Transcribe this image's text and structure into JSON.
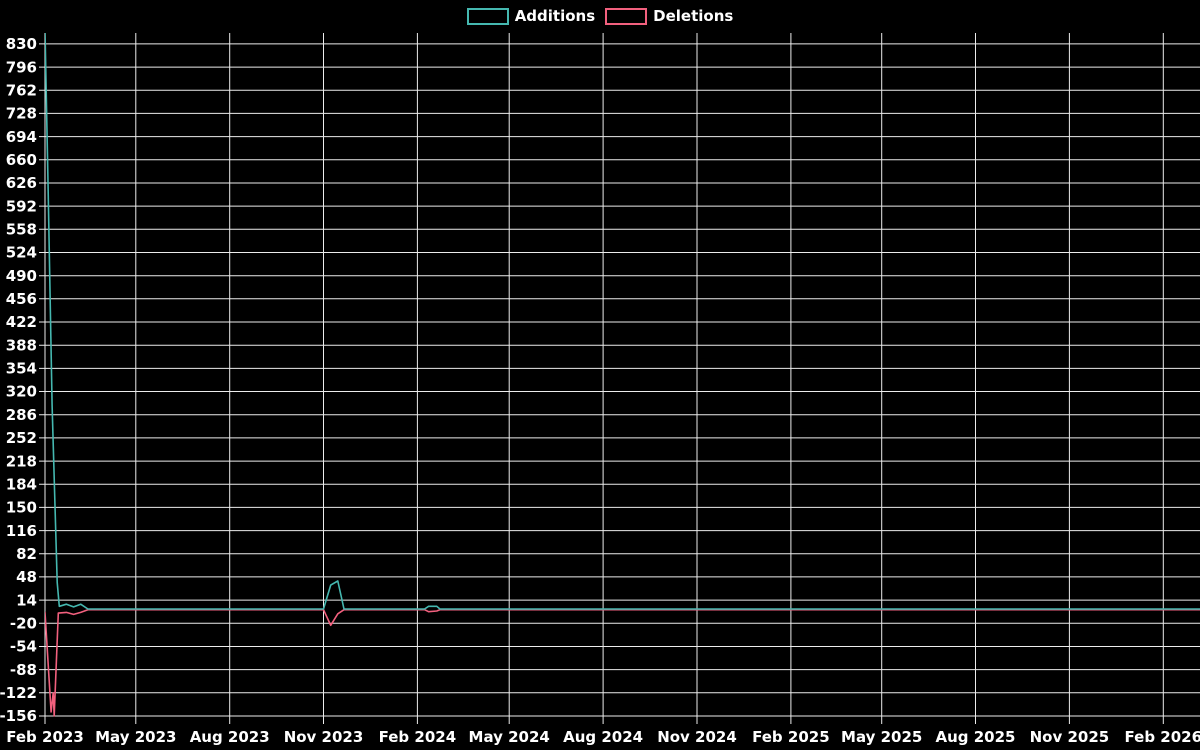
{
  "page": {
    "background_color": "#000000"
  },
  "chart_data": {
    "type": "line",
    "title": "",
    "xlabel": "",
    "ylabel": "",
    "grid": true,
    "legend_position": "top-center",
    "background_color": "#000000",
    "text_color": "#ffffff",
    "grid_color": "#ececec",
    "x_range": [
      "2023-02-01",
      "2026-03-09"
    ],
    "y_range": [
      -156,
      846
    ],
    "y_axis": {
      "tick_step": 34,
      "ticks": [
        830,
        796,
        762,
        728,
        694,
        660,
        626,
        592,
        558,
        524,
        490,
        456,
        422,
        388,
        354,
        320,
        286,
        252,
        218,
        184,
        150,
        116,
        82,
        48,
        14,
        -20,
        -54,
        -88,
        -122,
        -156
      ]
    },
    "x_axis": {
      "ticks": [
        {
          "label": "Feb 2023",
          "date": "2023-02-01"
        },
        {
          "label": "May 2023",
          "date": "2023-05-01"
        },
        {
          "label": "Aug 2023",
          "date": "2023-08-01"
        },
        {
          "label": "Nov 2023",
          "date": "2023-11-01"
        },
        {
          "label": "Feb 2024",
          "date": "2024-02-01"
        },
        {
          "label": "May 2024",
          "date": "2024-05-01"
        },
        {
          "label": "Aug 2024",
          "date": "2024-08-01"
        },
        {
          "label": "Nov 2024",
          "date": "2024-11-01"
        },
        {
          "label": "Feb 2025",
          "date": "2025-02-01"
        },
        {
          "label": "May 2025",
          "date": "2025-05-01"
        },
        {
          "label": "Aug 2025",
          "date": "2025-08-01"
        },
        {
          "label": "Nov 2025",
          "date": "2025-11-01"
        },
        {
          "label": "Feb 2026",
          "date": "2026-02-01"
        }
      ]
    },
    "series": [
      {
        "name": "Additions",
        "color": "#45b8b0",
        "points": [
          [
            "2023-02-01",
            850
          ],
          [
            "2023-02-04",
            620
          ],
          [
            "2023-02-08",
            300
          ],
          [
            "2023-02-13",
            40
          ],
          [
            "2023-02-15",
            5
          ],
          [
            "2023-02-22",
            8
          ],
          [
            "2023-03-01",
            4
          ],
          [
            "2023-03-08",
            8
          ],
          [
            "2023-03-15",
            1
          ],
          [
            "2023-11-01",
            1
          ],
          [
            "2023-11-08",
            36
          ],
          [
            "2023-11-15",
            42
          ],
          [
            "2023-11-21",
            1
          ],
          [
            "2024-02-08",
            1
          ],
          [
            "2024-02-12",
            5
          ],
          [
            "2024-02-20",
            5
          ],
          [
            "2024-02-23",
            1
          ],
          [
            "2026-03-09",
            1
          ]
        ]
      },
      {
        "name": "Deletions",
        "color": "#f2607e",
        "points": [
          [
            "2023-02-01",
            -4
          ],
          [
            "2023-02-07",
            -150
          ],
          [
            "2023-02-09",
            -122
          ],
          [
            "2023-02-10",
            -156
          ],
          [
            "2023-02-14",
            -5
          ],
          [
            "2023-02-22",
            -4
          ],
          [
            "2023-03-01",
            -7
          ],
          [
            "2023-03-08",
            -4
          ],
          [
            "2023-03-15",
            0
          ],
          [
            "2023-11-01",
            0
          ],
          [
            "2023-11-08",
            -23
          ],
          [
            "2023-11-15",
            -6
          ],
          [
            "2023-11-21",
            0
          ],
          [
            "2024-02-08",
            0
          ],
          [
            "2024-02-12",
            -3
          ],
          [
            "2024-02-20",
            -2
          ],
          [
            "2024-02-23",
            0
          ],
          [
            "2026-03-09",
            0
          ]
        ]
      }
    ]
  }
}
